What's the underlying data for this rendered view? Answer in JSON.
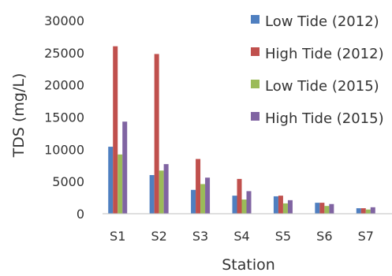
{
  "chart_data": {
    "type": "bar",
    "xlabel": "Station",
    "ylabel": "TDS (mg/L)",
    "ylim": [
      0,
      30000
    ],
    "yticks": [
      0,
      5000,
      10000,
      15000,
      20000,
      25000,
      30000
    ],
    "categories": [
      "S1",
      "S2",
      "S3",
      "S4",
      "S5",
      "S6",
      "S7"
    ],
    "series": [
      {
        "name": "Low Tide (2012)",
        "color": "#4F7FC0",
        "values": [
          10400,
          6000,
          3700,
          2800,
          2700,
          1700,
          850
        ]
      },
      {
        "name": "High Tide (2012)",
        "color": "#C0504D",
        "values": [
          26000,
          24800,
          8500,
          5400,
          2800,
          1700,
          850
        ]
      },
      {
        "name": "Low Tide (2015)",
        "color": "#9BBB59",
        "values": [
          9200,
          6700,
          4600,
          2200,
          1600,
          1200,
          650
        ]
      },
      {
        "name": "High Tide (2015)",
        "color": "#8064A2",
        "values": [
          14300,
          7700,
          5600,
          3500,
          2100,
          1500,
          1000
        ]
      }
    ],
    "legend_position": "top-right",
    "grid": false
  }
}
